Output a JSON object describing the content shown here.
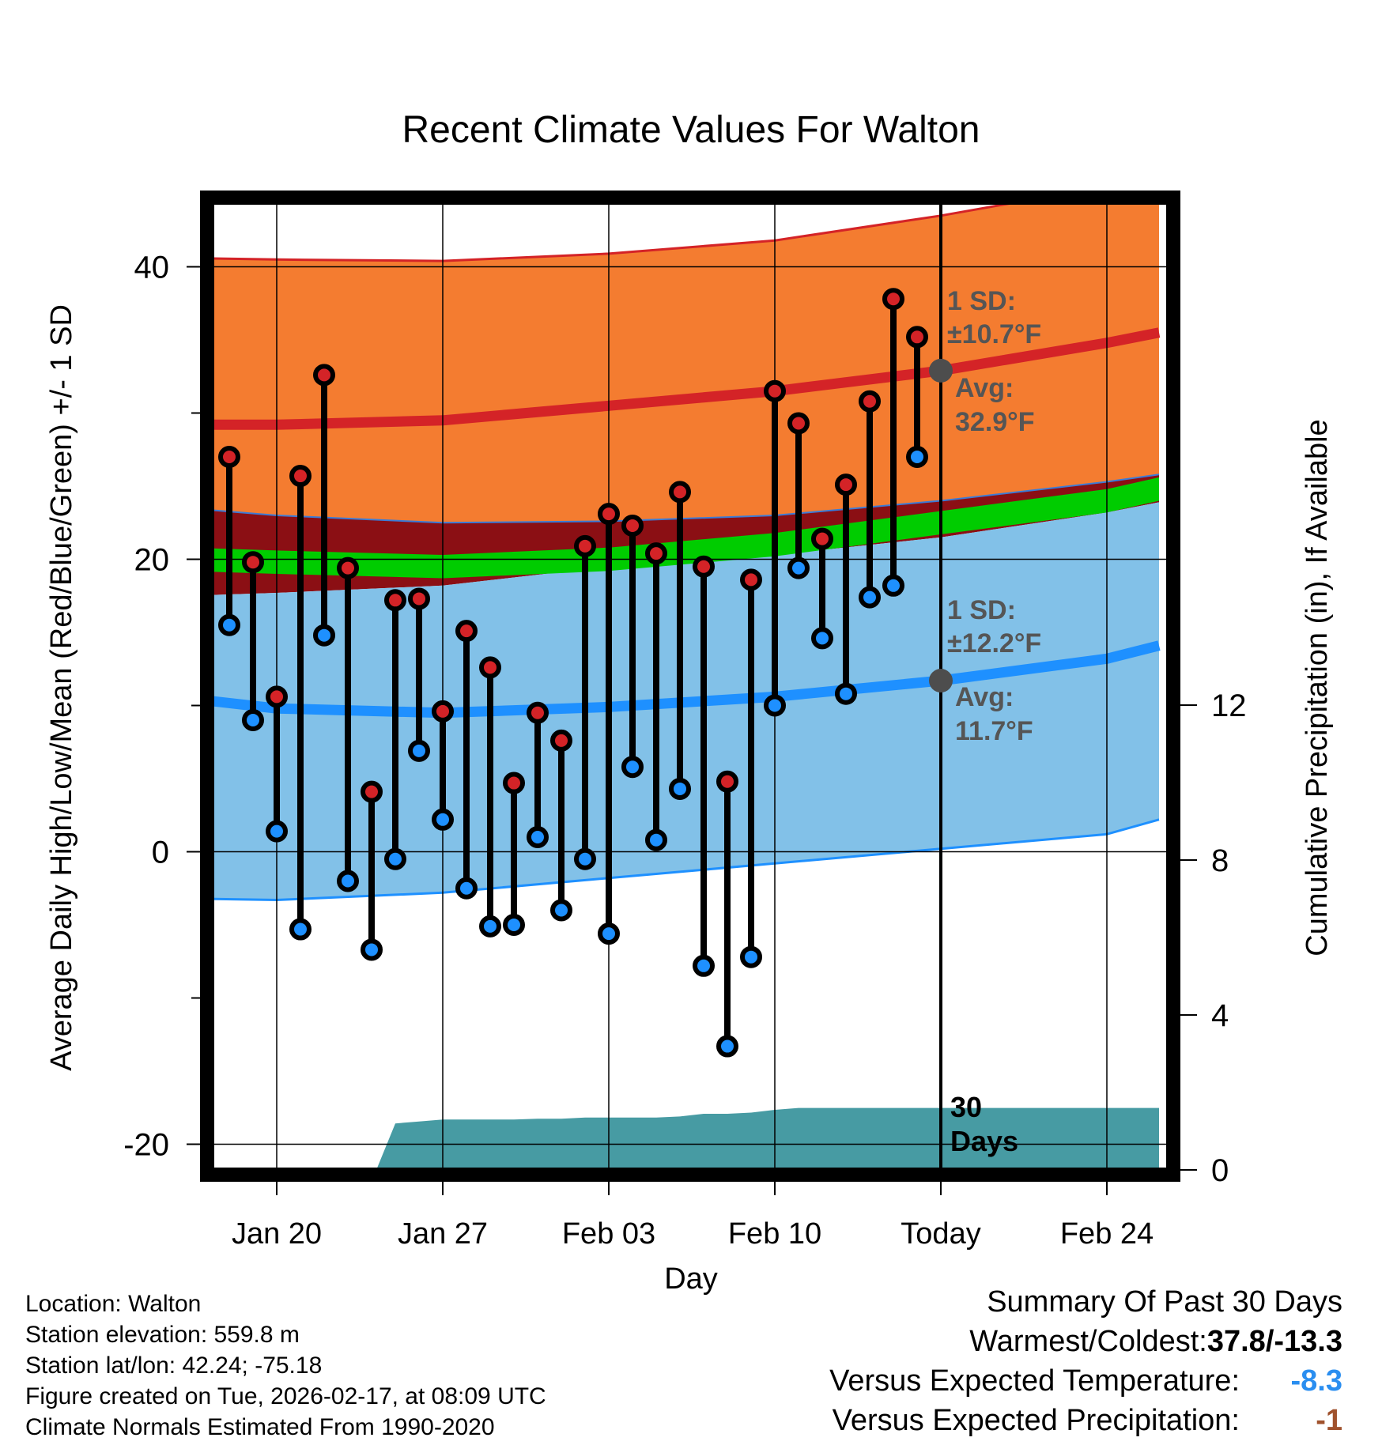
{
  "chart_data": {
    "type": "line",
    "title": "Recent Climate Values For Walton",
    "xlabel": "Day",
    "ylabel": "Average Daily High/Low/Mean (Red/Blue/Green) +/- 1 SD",
    "y2label": "Cumulative Precipitation (in), If Available",
    "ylim": [
      -20.5,
      45
    ],
    "y2lim": [
      0,
      24.6
    ],
    "xlim": [
      -3.8,
      37.2
    ],
    "x_ticks": [
      {
        "x": 0,
        "label": "Jan 20"
      },
      {
        "x": 7,
        "label": "Jan 27"
      },
      {
        "x": 14,
        "label": "Feb 03"
      },
      {
        "x": 21,
        "label": "Feb 10"
      },
      {
        "x": 28,
        "label": "Today"
      },
      {
        "x": 35,
        "label": "Feb 24"
      }
    ],
    "y_ticks": [
      40,
      20,
      0,
      -20
    ],
    "y_minor_ticks": [
      30,
      10,
      -10
    ],
    "y2_ticks": [
      0,
      4,
      8,
      12
    ],
    "today_x": 28,
    "normals_x": [
      -3.8,
      0,
      7,
      14,
      21,
      28,
      35,
      37.2
    ],
    "normal_high_upper": [
      40.6,
      40.5,
      40.4,
      40.9,
      41.8,
      43.5,
      45.5,
      46.2
    ],
    "normal_high": [
      29.2,
      29.2,
      29.5,
      30.5,
      31.5,
      32.9,
      34.8,
      35.5
    ],
    "normal_high_lower": [
      23.5,
      23,
      22.5,
      22.6,
      23,
      24,
      25.3,
      25.8
    ],
    "normal_mean": [
      20,
      19.8,
      19.5,
      20,
      21,
      22.5,
      24,
      24.8
    ],
    "normal_low_upper": [
      17.5,
      17.7,
      18.2,
      19.5,
      20.3,
      21.5,
      23.2,
      23.9
    ],
    "normal_low": [
      10.5,
      9.8,
      9.5,
      9.9,
      10.6,
      11.7,
      13.2,
      14.1
    ],
    "normal_low_lower": [
      -3.2,
      -3.3,
      -2.8,
      -1.8,
      -0.8,
      0.2,
      1.2,
      2.2
    ],
    "days": [
      {
        "x": -2,
        "high": 27.0,
        "low": 15.5
      },
      {
        "x": -1,
        "high": 19.8,
        "low": 9.0
      },
      {
        "x": 0,
        "high": 10.6,
        "low": 1.4
      },
      {
        "x": 1,
        "high": 25.7,
        "low": -5.3
      },
      {
        "x": 2,
        "high": 32.6,
        "low": 14.8
      },
      {
        "x": 3,
        "high": 19.4,
        "low": -2.0
      },
      {
        "x": 4,
        "high": 4.1,
        "low": -6.7
      },
      {
        "x": 5,
        "high": 17.2,
        "low": -0.5
      },
      {
        "x": 6,
        "high": 17.3,
        "low": 6.9
      },
      {
        "x": 7,
        "high": 9.6,
        "low": 2.2
      },
      {
        "x": 8,
        "high": 15.1,
        "low": -2.5
      },
      {
        "x": 9,
        "high": 12.6,
        "low": -5.1
      },
      {
        "x": 10,
        "high": 4.7,
        "low": -5.0
      },
      {
        "x": 11,
        "high": 9.5,
        "low": 1.0
      },
      {
        "x": 12,
        "high": 7.6,
        "low": -4.0
      },
      {
        "x": 13,
        "high": 20.9,
        "low": -0.5
      },
      {
        "x": 14,
        "high": 23.1,
        "low": -5.6
      },
      {
        "x": 15,
        "high": 22.3,
        "low": 5.8
      },
      {
        "x": 16,
        "high": 20.4,
        "low": 0.8
      },
      {
        "x": 17,
        "high": 24.6,
        "low": 4.3
      },
      {
        "x": 18,
        "high": 19.5,
        "low": -7.8
      },
      {
        "x": 19,
        "high": 4.8,
        "low": -13.3
      },
      {
        "x": 20,
        "high": 18.6,
        "low": -7.2
      },
      {
        "x": 21,
        "high": 31.5,
        "low": 10.0
      },
      {
        "x": 22,
        "high": 29.3,
        "low": 19.4
      },
      {
        "x": 23,
        "high": 21.4,
        "low": 14.6
      },
      {
        "x": 24,
        "high": 25.1,
        "low": 10.8
      },
      {
        "x": 25,
        "high": 30.8,
        "low": 17.4
      },
      {
        "x": 26,
        "high": 37.8,
        "low": 18.2
      },
      {
        "x": 27,
        "high": 35.2,
        "low": 27.0
      }
    ],
    "precip_x": [
      -3.8,
      0,
      1,
      2,
      3,
      4,
      5,
      6,
      7,
      8,
      9,
      10,
      11,
      12,
      13,
      14,
      15,
      16,
      17,
      18,
      19,
      20,
      21,
      22,
      23,
      24,
      25,
      26,
      27,
      28,
      37.2
    ],
    "precip_cum": [
      0,
      0,
      0,
      0,
      0,
      0,
      1.2,
      1.25,
      1.3,
      1.3,
      1.3,
      1.3,
      1.32,
      1.32,
      1.35,
      1.35,
      1.35,
      1.35,
      1.38,
      1.45,
      1.45,
      1.48,
      1.55,
      1.6,
      1.6,
      1.6,
      1.6,
      1.6,
      1.6,
      1.6,
      1.6
    ],
    "precip_start_x": 4.2,
    "high_annotation": {
      "sd_label": "1 SD:",
      "sd_value": "±10.7°F",
      "avg_label": "Avg:",
      "avg_value": "32.9°F",
      "avg": 32.9
    },
    "low_annotation": {
      "sd_label": "1 SD:",
      "sd_value": "±12.2°F",
      "avg_label": "Avg:",
      "avg_value": "11.7°F",
      "avg": 11.7
    },
    "precip_annotation": [
      "30",
      "Days"
    ],
    "colors": {
      "high_band": "#f47c30",
      "high_line": "#d42327",
      "overlap_band": "#8b0f14",
      "mean_band": "#00cc00",
      "low_band": "#82c1e8",
      "low_line": "#1e90ff",
      "low_edge": "#1e90ff",
      "precip": "#479ba3",
      "high_dot": "#d42327",
      "low_dot": "#1e90ff",
      "annotation": "#555555"
    }
  },
  "info": {
    "location": "Location: Walton",
    "elevation": "Station elevation: 559.8 m",
    "latlon": "Station lat/lon: 42.24; -75.18",
    "created": "Figure created on Tue, 2026-02-17, at 08:09 UTC",
    "normals": "Climate Normals Estimated From 1990-2020"
  },
  "summary": {
    "title": "Summary Of Past 30 Days",
    "warmest_label": "Warmest/Coldest: ",
    "warmest_value": "37.8/-13.3",
    "temp_label": "Versus Expected Temperature:",
    "temp_value": "-8.3",
    "temp_color": "#2a8ef0",
    "precip_label": "Versus Expected Precipitation:",
    "precip_value": "-1",
    "precip_color": "#a0522d"
  }
}
